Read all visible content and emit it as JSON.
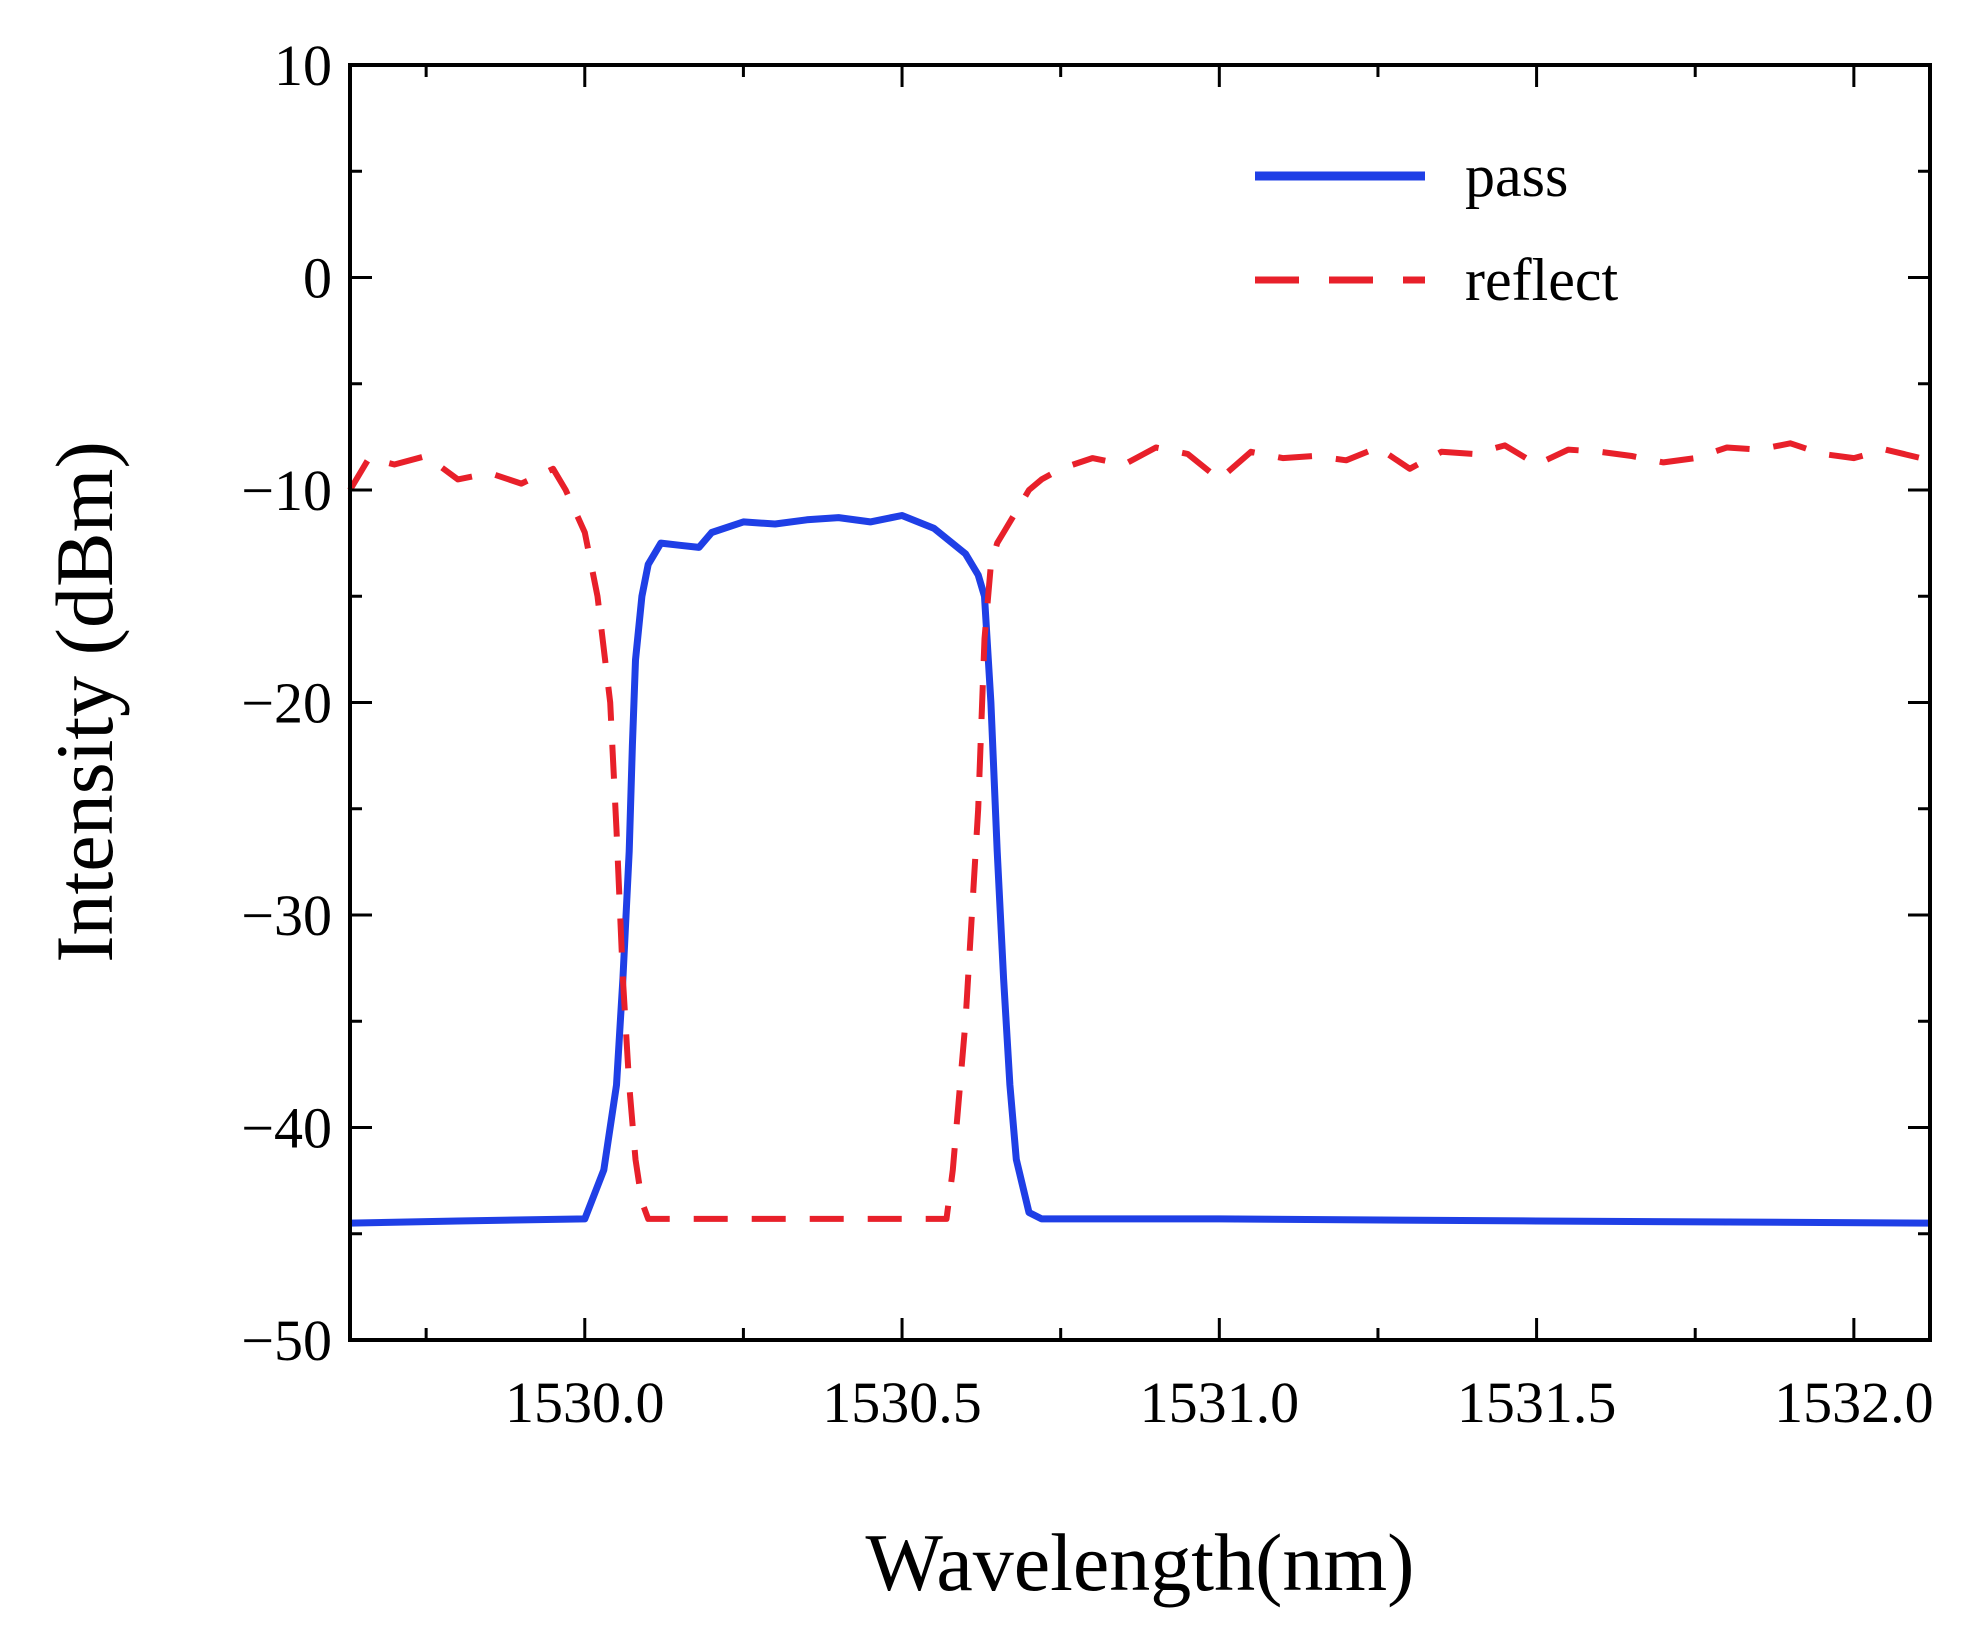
{
  "chart_data": {
    "type": "line",
    "title": "",
    "xlabel": "Wavelength(nm)",
    "ylabel": "Intensity (dBm)",
    "xlim": [
      1529.63,
      1532.12
    ],
    "ylim": [
      -50,
      10
    ],
    "x_ticks": [
      1530.0,
      1530.5,
      1531.0,
      1531.5,
      1532.0
    ],
    "x_tick_labels": [
      "1530.0",
      "1530.5",
      "1531.0",
      "1531.5",
      "1532.0"
    ],
    "x_minor_ticks": [
      1529.75,
      1530.25,
      1530.75,
      1531.25,
      1531.75
    ],
    "y_ticks": [
      -50,
      -40,
      -30,
      -20,
      -10,
      0,
      10
    ],
    "y_tick_labels": [
      "−50",
      "−40",
      "−30",
      "−20",
      "−10",
      "0",
      "10"
    ],
    "y_minor_ticks": [
      -45,
      -35,
      -25,
      -15,
      -5,
      5
    ],
    "grid": false,
    "legend": {
      "position": "top-right"
    },
    "series": [
      {
        "name": "pass",
        "color": "#1f3fe6",
        "style": "solid",
        "x": [
          1529.63,
          1529.8,
          1530.0,
          1530.03,
          1530.05,
          1530.06,
          1530.07,
          1530.075,
          1530.08,
          1530.09,
          1530.1,
          1530.12,
          1530.15,
          1530.18,
          1530.2,
          1530.25,
          1530.3,
          1530.35,
          1530.4,
          1530.45,
          1530.5,
          1530.55,
          1530.6,
          1530.62,
          1530.63,
          1530.64,
          1530.65,
          1530.66,
          1530.67,
          1530.68,
          1530.7,
          1530.72,
          1531.0,
          1531.5,
          1532.12
        ],
        "y": [
          -44.5,
          -44.4,
          -44.3,
          -42,
          -38,
          -33,
          -27,
          -22,
          -18,
          -15,
          -13.5,
          -12.5,
          -12.6,
          -12.7,
          -12,
          -11.5,
          -11.6,
          -11.4,
          -11.3,
          -11.5,
          -11.2,
          -11.8,
          -13,
          -14,
          -15,
          -20,
          -27,
          -33,
          -38,
          -41.5,
          -44,
          -44.3,
          -44.3,
          -44.4,
          -44.5
        ]
      },
      {
        "name": "reflect",
        "color": "#e8202a",
        "style": "dashed",
        "x": [
          1529.63,
          1529.66,
          1529.7,
          1529.75,
          1529.8,
          1529.85,
          1529.9,
          1529.95,
          1529.97,
          1530.0,
          1530.02,
          1530.04,
          1530.05,
          1530.06,
          1530.07,
          1530.08,
          1530.09,
          1530.1,
          1530.12,
          1530.15,
          1530.2,
          1530.3,
          1530.4,
          1530.5,
          1530.57,
          1530.58,
          1530.6,
          1530.62,
          1530.63,
          1530.64,
          1530.65,
          1530.66,
          1530.68,
          1530.7,
          1530.72,
          1530.75,
          1530.8,
          1530.85,
          1530.9,
          1530.95,
          1531.0,
          1531.05,
          1531.1,
          1531.15,
          1531.2,
          1531.25,
          1531.3,
          1531.35,
          1531.4,
          1531.45,
          1531.5,
          1531.55,
          1531.6,
          1531.65,
          1531.7,
          1531.75,
          1531.8,
          1531.85,
          1531.9,
          1531.95,
          1532.0,
          1532.05,
          1532.12
        ],
        "y": [
          -10.0,
          -8.5,
          -8.8,
          -8.4,
          -9.5,
          -9.2,
          -9.7,
          -9.0,
          -10.0,
          -12,
          -15,
          -20,
          -26,
          -33,
          -38,
          -41.5,
          -43.5,
          -44.3,
          -44.3,
          -44.3,
          -44.3,
          -44.3,
          -44.3,
          -44.3,
          -44.3,
          -42,
          -35,
          -25,
          -17,
          -13.5,
          -12.5,
          -12,
          -11,
          -10,
          -9.5,
          -9.0,
          -8.5,
          -8.8,
          -8.0,
          -8.3,
          -9.5,
          -8.2,
          -8.5,
          -8.4,
          -8.6,
          -8.0,
          -9.0,
          -8.2,
          -8.3,
          -7.9,
          -8.8,
          -8.1,
          -8.2,
          -8.4,
          -8.7,
          -8.5,
          -8.0,
          -8.1,
          -7.8,
          -8.3,
          -8.5,
          -8.1,
          -8.6
        ]
      }
    ]
  }
}
